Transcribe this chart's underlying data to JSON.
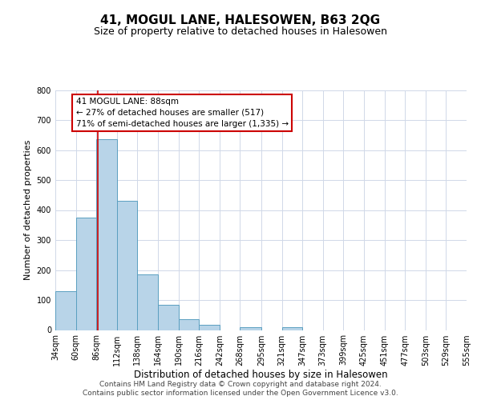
{
  "title": "41, MOGUL LANE, HALESOWEN, B63 2QG",
  "subtitle": "Size of property relative to detached houses in Halesowen",
  "xlabel": "Distribution of detached houses by size in Halesowen",
  "ylabel": "Number of detached properties",
  "bin_edges": [
    34,
    60,
    86,
    112,
    138,
    164,
    190,
    216,
    242,
    268,
    295,
    321,
    347,
    373,
    399,
    425,
    451,
    477,
    503,
    529,
    555
  ],
  "bin_counts": [
    130,
    375,
    635,
    432,
    185,
    85,
    35,
    17,
    0,
    10,
    0,
    10,
    0,
    0,
    0,
    0,
    0,
    0,
    0,
    0
  ],
  "bar_color": "#b8d4e8",
  "bar_edge_color": "#5a9fc0",
  "property_line_x": 88,
  "property_line_color": "#cc0000",
  "annotation_line1": "41 MOGUL LANE: 88sqm",
  "annotation_line2": "← 27% of detached houses are smaller (517)",
  "annotation_line3": "71% of semi-detached houses are larger (1,335) →",
  "annotation_box_color": "#ffffff",
  "annotation_box_edge_color": "#cc0000",
  "ylim": [
    0,
    800
  ],
  "yticks": [
    0,
    100,
    200,
    300,
    400,
    500,
    600,
    700,
    800
  ],
  "tick_labels": [
    "34sqm",
    "60sqm",
    "86sqm",
    "112sqm",
    "138sqm",
    "164sqm",
    "190sqm",
    "216sqm",
    "242sqm",
    "268sqm",
    "295sqm",
    "321sqm",
    "347sqm",
    "373sqm",
    "399sqm",
    "425sqm",
    "451sqm",
    "477sqm",
    "503sqm",
    "529sqm",
    "555sqm"
  ],
  "footer_line1": "Contains HM Land Registry data © Crown copyright and database right 2024.",
  "footer_line2": "Contains public sector information licensed under the Open Government Licence v3.0.",
  "background_color": "#ffffff",
  "grid_color": "#d0d8e8",
  "title_fontsize": 11,
  "subtitle_fontsize": 9,
  "xlabel_fontsize": 8.5,
  "ylabel_fontsize": 8,
  "tick_fontsize": 7,
  "footer_fontsize": 6.5
}
